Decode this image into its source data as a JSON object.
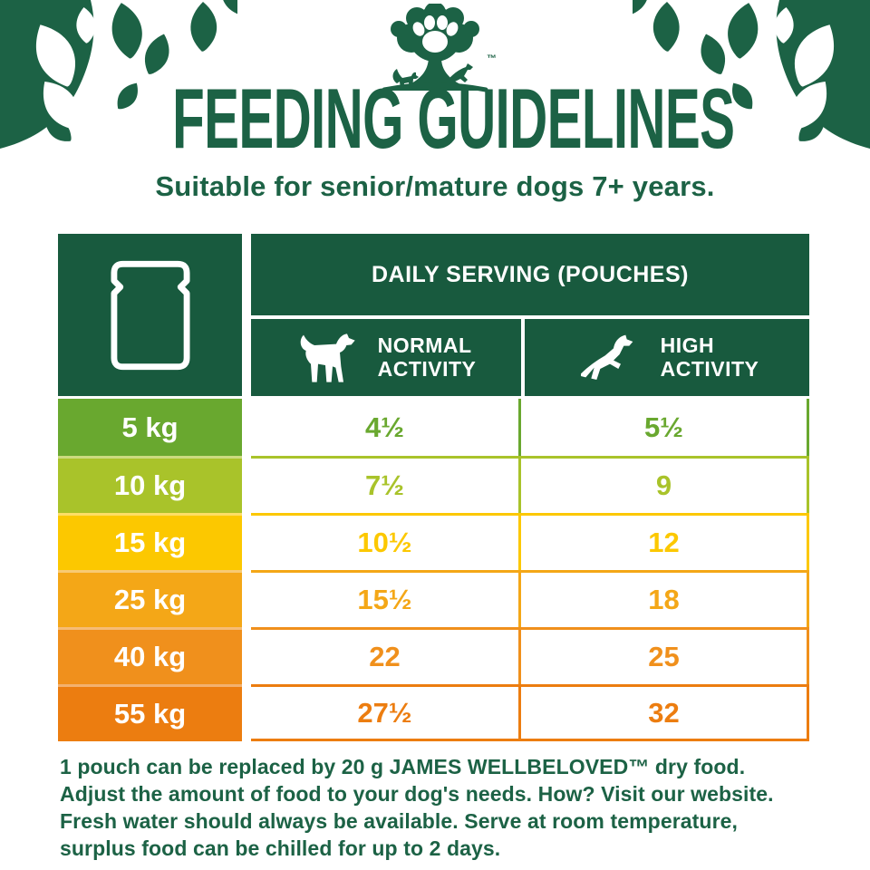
{
  "colors": {
    "green_dark": "#185a3e",
    "green_text": "#1c6245",
    "white": "#ffffff"
  },
  "brand": {
    "logo_icon": "tree-paw-logo",
    "trademark": "™"
  },
  "decor": {
    "left": "leaf-branch-decoration",
    "right": "leaf-branch-decoration-mirrored"
  },
  "header": {
    "title": "FEEDING GUIDELINES",
    "subtitle": "Suitable for senior/mature dogs 7+ years."
  },
  "table": {
    "corner_icon": "pouch-icon",
    "serving_header": "DAILY SERVING (POUCHES)",
    "columns": [
      {
        "label": "NORMAL\nACTIVITY",
        "icon": "standing-dog-icon"
      },
      {
        "label": "HIGH\nACTIVITY",
        "icon": "jumping-dog-icon"
      }
    ],
    "rows": [
      {
        "weight": "5 kg",
        "normal": "4½",
        "high": "5½",
        "color": "#69a82f"
      },
      {
        "weight": "10 kg",
        "normal": "7½",
        "high": "9",
        "color": "#a9c32a"
      },
      {
        "weight": "15 kg",
        "normal": "10½",
        "high": "12",
        "color": "#fcc800"
      },
      {
        "weight": "25 kg",
        "normal": "15½",
        "high": "18",
        "color": "#f4a717"
      },
      {
        "weight": "40 kg",
        "normal": "22",
        "high": "25",
        "color": "#f0901c"
      },
      {
        "weight": "55 kg",
        "normal": "27½",
        "high": "32",
        "color": "#ec7d10"
      }
    ]
  },
  "footer": {
    "lines": [
      "1 pouch can be replaced by 20 g JAMES WELLBELOVED™ dry food.",
      "Adjust the amount of food to your dog's needs. How? Visit our website.",
      "Fresh water should always be available. Serve at room temperature,",
      "surplus food can be chilled for up to 2 days."
    ]
  }
}
